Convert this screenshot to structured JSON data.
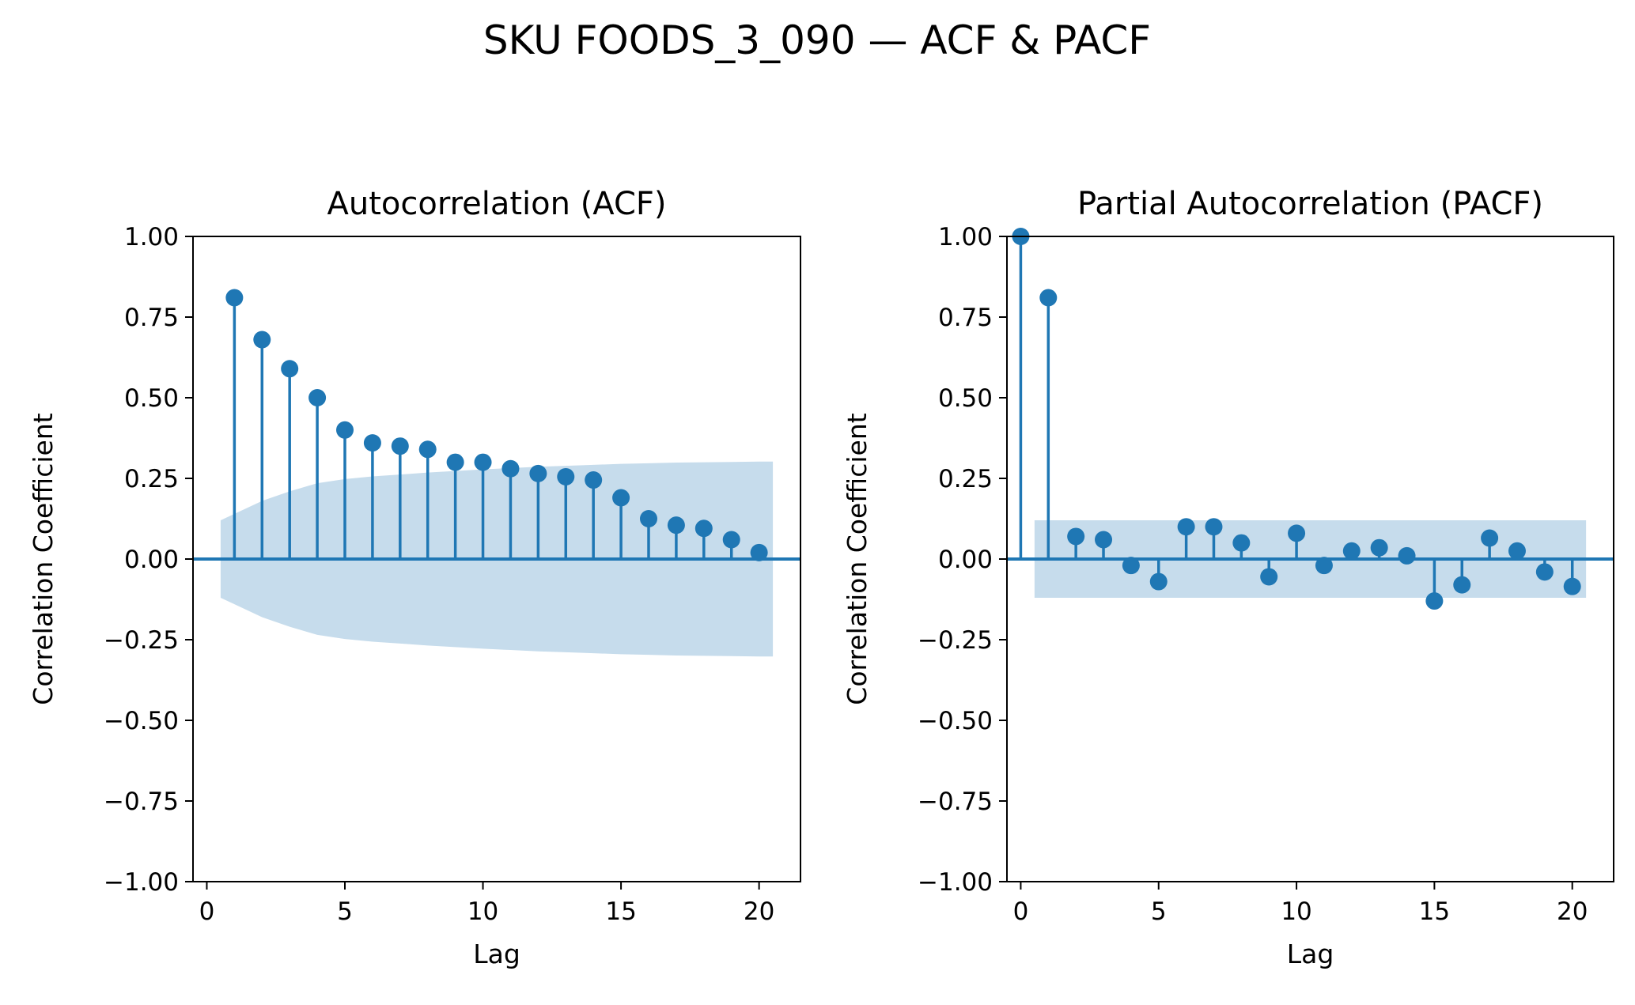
{
  "figure": {
    "title": "SKU FOODS_3_090 — ACF & PACF"
  },
  "colors": {
    "stem": "#1f77b4",
    "band": "#c6dcec",
    "axis": "#000000"
  },
  "chart_data": [
    {
      "type": "stem",
      "title": "Autocorrelation (ACF)",
      "xlabel": "Lag",
      "ylabel": "Correlation Coefficient",
      "xlim": [
        -0.5,
        21.5
      ],
      "ylim": [
        -1.0,
        1.0
      ],
      "xticks": [
        0,
        5,
        10,
        15,
        20
      ],
      "yticks": [
        -1.0,
        -0.75,
        -0.5,
        -0.25,
        0.0,
        0.25,
        0.5,
        0.75,
        1.0
      ],
      "ytick_labels": [
        "−1.00",
        "−0.75",
        "−0.50",
        "−0.25",
        "0.00",
        "0.25",
        "0.50",
        "0.75",
        "1.00"
      ],
      "xtick_labels": [
        "0",
        "5",
        "10",
        "15",
        "20"
      ],
      "lags": [
        1,
        2,
        3,
        4,
        5,
        6,
        7,
        8,
        9,
        10,
        11,
        12,
        13,
        14,
        15,
        16,
        17,
        18,
        19,
        20
      ],
      "values": [
        0.81,
        0.68,
        0.59,
        0.5,
        0.4,
        0.36,
        0.35,
        0.34,
        0.3,
        0.3,
        0.28,
        0.265,
        0.255,
        0.245,
        0.19,
        0.125,
        0.105,
        0.095,
        0.06,
        0.02
      ],
      "confidence_band": {
        "x": [
          0.5,
          1,
          2,
          3,
          4,
          5,
          6,
          7,
          8,
          9,
          10,
          11,
          12,
          13,
          14,
          15,
          16,
          17,
          18,
          19,
          20,
          20.5
        ],
        "upper": [
          0.12,
          0.14,
          0.18,
          0.21,
          0.235,
          0.248,
          0.256,
          0.262,
          0.268,
          0.273,
          0.278,
          0.282,
          0.286,
          0.289,
          0.292,
          0.295,
          0.297,
          0.299,
          0.3,
          0.301,
          0.302,
          0.302
        ]
      }
    },
    {
      "type": "stem",
      "title": "Partial Autocorrelation (PACF)",
      "xlabel": "Lag",
      "ylabel": "Correlation Coefficient",
      "xlim": [
        -0.5,
        21.5
      ],
      "ylim": [
        -1.0,
        1.0
      ],
      "xticks": [
        0,
        5,
        10,
        15,
        20
      ],
      "yticks": [
        -1.0,
        -0.75,
        -0.5,
        -0.25,
        0.0,
        0.25,
        0.5,
        0.75,
        1.0
      ],
      "ytick_labels": [
        "−1.00",
        "−0.75",
        "−0.50",
        "−0.25",
        "0.00",
        "0.25",
        "0.50",
        "0.75",
        "1.00"
      ],
      "xtick_labels": [
        "0",
        "5",
        "10",
        "15",
        "20"
      ],
      "lags": [
        0,
        1,
        2,
        3,
        4,
        5,
        6,
        7,
        8,
        9,
        10,
        11,
        12,
        13,
        14,
        15,
        16,
        17,
        18,
        19,
        20
      ],
      "values": [
        1.0,
        0.81,
        0.07,
        0.06,
        -0.02,
        -0.07,
        0.1,
        0.1,
        0.05,
        -0.055,
        0.08,
        -0.02,
        0.025,
        0.035,
        0.01,
        -0.13,
        -0.08,
        0.065,
        0.025,
        -0.04,
        -0.085
      ],
      "confidence_band": {
        "x": [
          0.5,
          20.5
        ],
        "upper": [
          0.12,
          0.12
        ]
      }
    }
  ]
}
